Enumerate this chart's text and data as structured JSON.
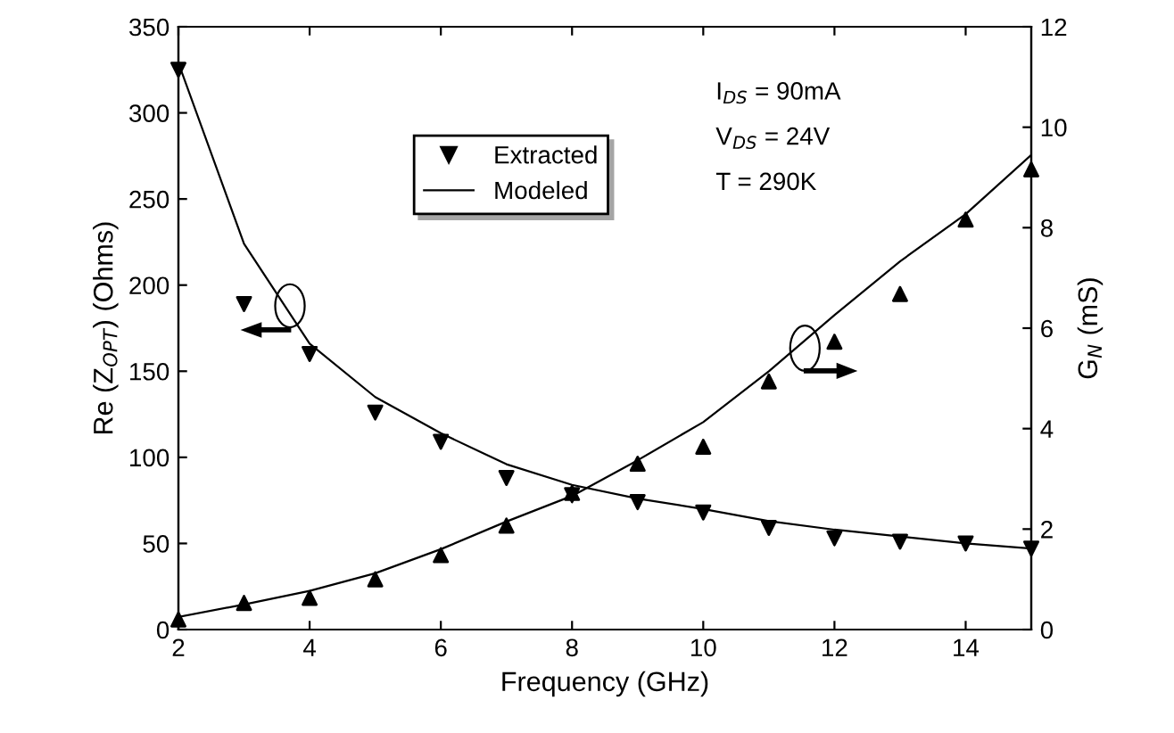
{
  "chart_data": {
    "type": "scatter",
    "xlabel": "Frequency (GHz)",
    "ylabel": "Re (Z$_{OPT}$) (Ohms)",
    "y2label": "G$_{N}$ (mS)",
    "xlim": [
      2,
      15
    ],
    "xticks": [
      2,
      4,
      6,
      8,
      10,
      12,
      14
    ],
    "ylim": [
      0,
      350
    ],
    "yticks": [
      0,
      50,
      100,
      150,
      200,
      250,
      300,
      350
    ],
    "y2lim": [
      0,
      12
    ],
    "y2ticks": [
      0,
      2,
      4,
      6,
      8,
      10,
      12
    ],
    "x": [
      2,
      3,
      4,
      5,
      6,
      7,
      8,
      9,
      10,
      11,
      12,
      13,
      14,
      15
    ],
    "series": [
      {
        "name": "Extracted",
        "marker": "triangle_down",
        "color": "#000000",
        "values": [
          325,
          189,
          160,
          126,
          109,
          88,
          78,
          74,
          68,
          59,
          53,
          51,
          50,
          47
        ]
      },
      {
        "name": "Modeled",
        "type": "line",
        "marker": "none",
        "color": "#000000",
        "values": [
          329,
          224,
          166,
          135,
          114,
          96,
          84,
          76,
          70,
          63,
          58,
          54,
          50,
          47
        ]
      },
      {
        "axis": "y2",
        "marker": "triangle",
        "color": "#000000",
        "values": [
          0.2,
          0.53,
          0.63,
          1.0,
          1.48,
          2.07,
          2.72,
          3.3,
          3.64,
          4.94,
          5.73,
          6.68,
          8.16,
          9.16
        ]
      },
      {
        "type": "line",
        "axis": "y2",
        "marker": "none",
        "color": "#000000",
        "values": [
          0.25,
          0.5,
          0.77,
          1.12,
          1.6,
          2.15,
          2.66,
          3.37,
          4.13,
          5.14,
          6.26,
          7.33,
          8.27,
          9.45
        ]
      }
    ],
    "annotations": [
      "I$_{DS}$ = 90mA",
      "V$_{DS}$ = 24V",
      "T = 290K"
    ],
    "legend": "top center",
    "grid": false
  }
}
